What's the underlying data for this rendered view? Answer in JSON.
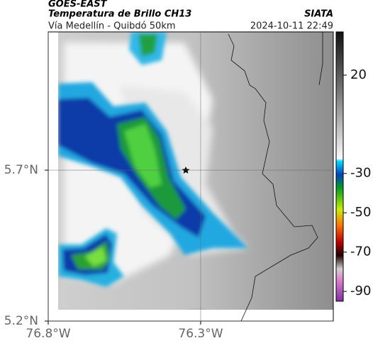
{
  "header": {
    "title": "GOES-EAST",
    "subtitle": "Temperatura de Brillo CH13",
    "source": "SIATA",
    "route": "Vía Medellín - Quibdó 50km",
    "timestamp": "2024-10-11 22:49"
  },
  "map": {
    "xlim": [
      -76.8,
      -75.865
    ],
    "ylim": [
      5.2,
      6.158
    ],
    "xticks": [
      {
        "value": -76.8,
        "label": "76.8°W"
      },
      {
        "value": -76.3,
        "label": "76.3°W"
      }
    ],
    "yticks": [
      {
        "value": 5.2,
        "label": "5.2°N"
      },
      {
        "value": 5.7,
        "label": "5.7°N"
      }
    ]
  },
  "colorbar": {
    "range": [
      -95,
      42
    ],
    "ticks": [
      20,
      -30,
      -50,
      -70,
      -90
    ]
  }
}
